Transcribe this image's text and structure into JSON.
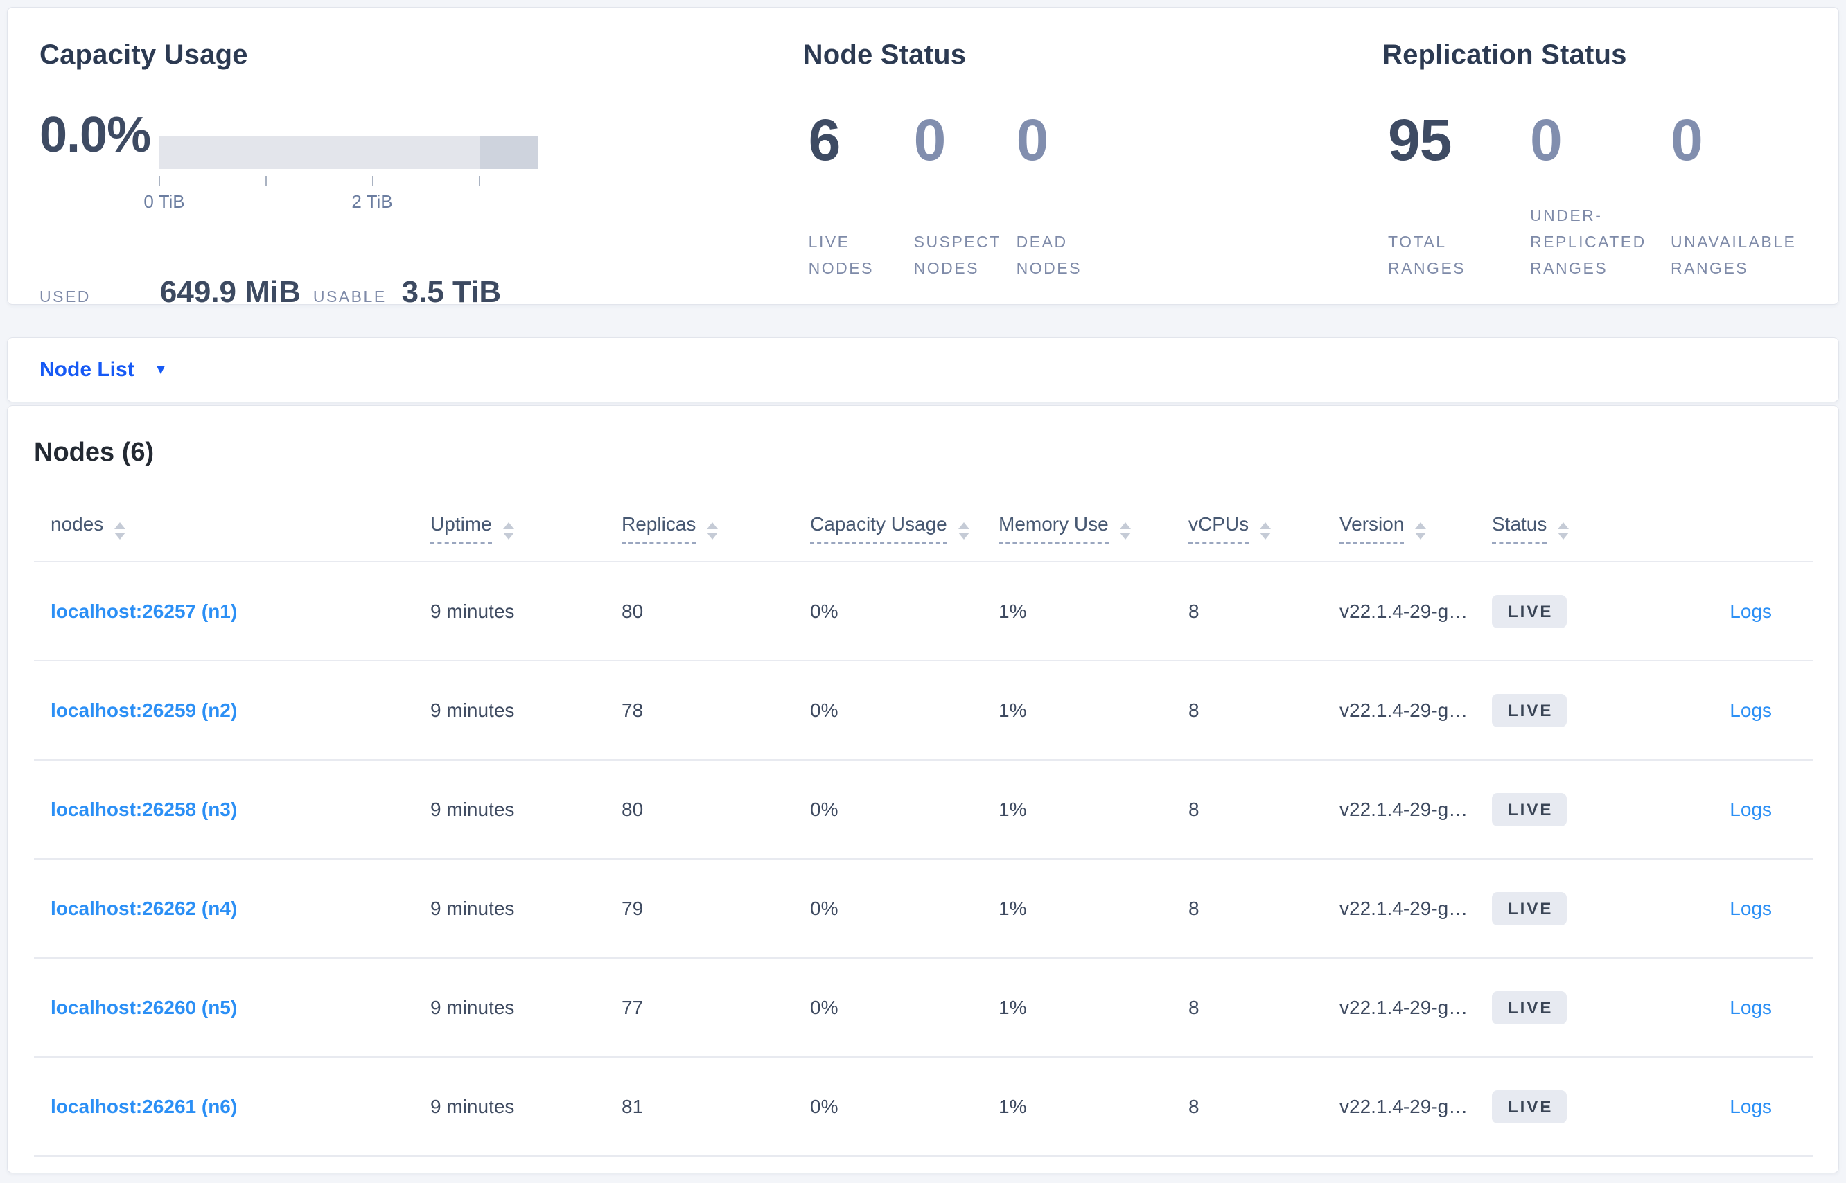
{
  "summary": {
    "capacity": {
      "title": "Capacity Usage",
      "percent": "0.0%",
      "ticks": [
        "0 TiB",
        "2 TiB"
      ],
      "used_label": "USED",
      "used_value": "649.9 MiB",
      "usable_label": "USABLE",
      "usable_value": "3.5 TiB"
    },
    "node_status": {
      "title": "Node Status",
      "metrics": [
        {
          "value": "6",
          "label": "LIVE NODES"
        },
        {
          "value": "0",
          "label": "SUSPECT NODES"
        },
        {
          "value": "0",
          "label": "DEAD NODES"
        }
      ]
    },
    "replication": {
      "title": "Replication Status",
      "metrics": [
        {
          "value": "95",
          "label": "TOTAL RANGES"
        },
        {
          "value": "0",
          "label": "UNDER-REPLICATED RANGES"
        },
        {
          "value": "0",
          "label": "UNAVAILABLE RANGES"
        }
      ]
    }
  },
  "view_selector": {
    "label": "Node List",
    "caret": "▼"
  },
  "table": {
    "title": "Nodes (6)",
    "logs_label": "Logs",
    "columns": [
      {
        "label": "nodes"
      },
      {
        "label": "Uptime"
      },
      {
        "label": "Replicas"
      },
      {
        "label": "Capacity Usage"
      },
      {
        "label": "Memory Use"
      },
      {
        "label": "vCPUs"
      },
      {
        "label": "Version"
      },
      {
        "label": "Status"
      }
    ],
    "rows": [
      {
        "node": "localhost:26257 (n1)",
        "uptime": "9 minutes",
        "replicas": "80",
        "capacity": "0%",
        "memory": "1%",
        "vcpus": "8",
        "version": "v22.1.4-29-g…",
        "status": "LIVE"
      },
      {
        "node": "localhost:26259 (n2)",
        "uptime": "9 minutes",
        "replicas": "78",
        "capacity": "0%",
        "memory": "1%",
        "vcpus": "8",
        "version": "v22.1.4-29-g…",
        "status": "LIVE"
      },
      {
        "node": "localhost:26258 (n3)",
        "uptime": "9 minutes",
        "replicas": "80",
        "capacity": "0%",
        "memory": "1%",
        "vcpus": "8",
        "version": "v22.1.4-29-g…",
        "status": "LIVE"
      },
      {
        "node": "localhost:26262 (n4)",
        "uptime": "9 minutes",
        "replicas": "79",
        "capacity": "0%",
        "memory": "1%",
        "vcpus": "8",
        "version": "v22.1.4-29-g…",
        "status": "LIVE"
      },
      {
        "node": "localhost:26260 (n5)",
        "uptime": "9 minutes",
        "replicas": "77",
        "capacity": "0%",
        "memory": "1%",
        "vcpus": "8",
        "version": "v22.1.4-29-g…",
        "status": "LIVE"
      },
      {
        "node": "localhost:26261 (n6)",
        "uptime": "9 minutes",
        "replicas": "81",
        "capacity": "0%",
        "memory": "1%",
        "vcpus": "8",
        "version": "v22.1.4-29-g…",
        "status": "LIVE"
      }
    ]
  },
  "colors": {
    "primary_link": "#1659f5",
    "node_link": "#2b8ff5",
    "badge_bg": "#e7eaf1",
    "badge_text": "#394455",
    "bar_light": "#e3e5eb",
    "bar_dark": "#ced3dd",
    "page_bg": "#f3f5f9"
  }
}
